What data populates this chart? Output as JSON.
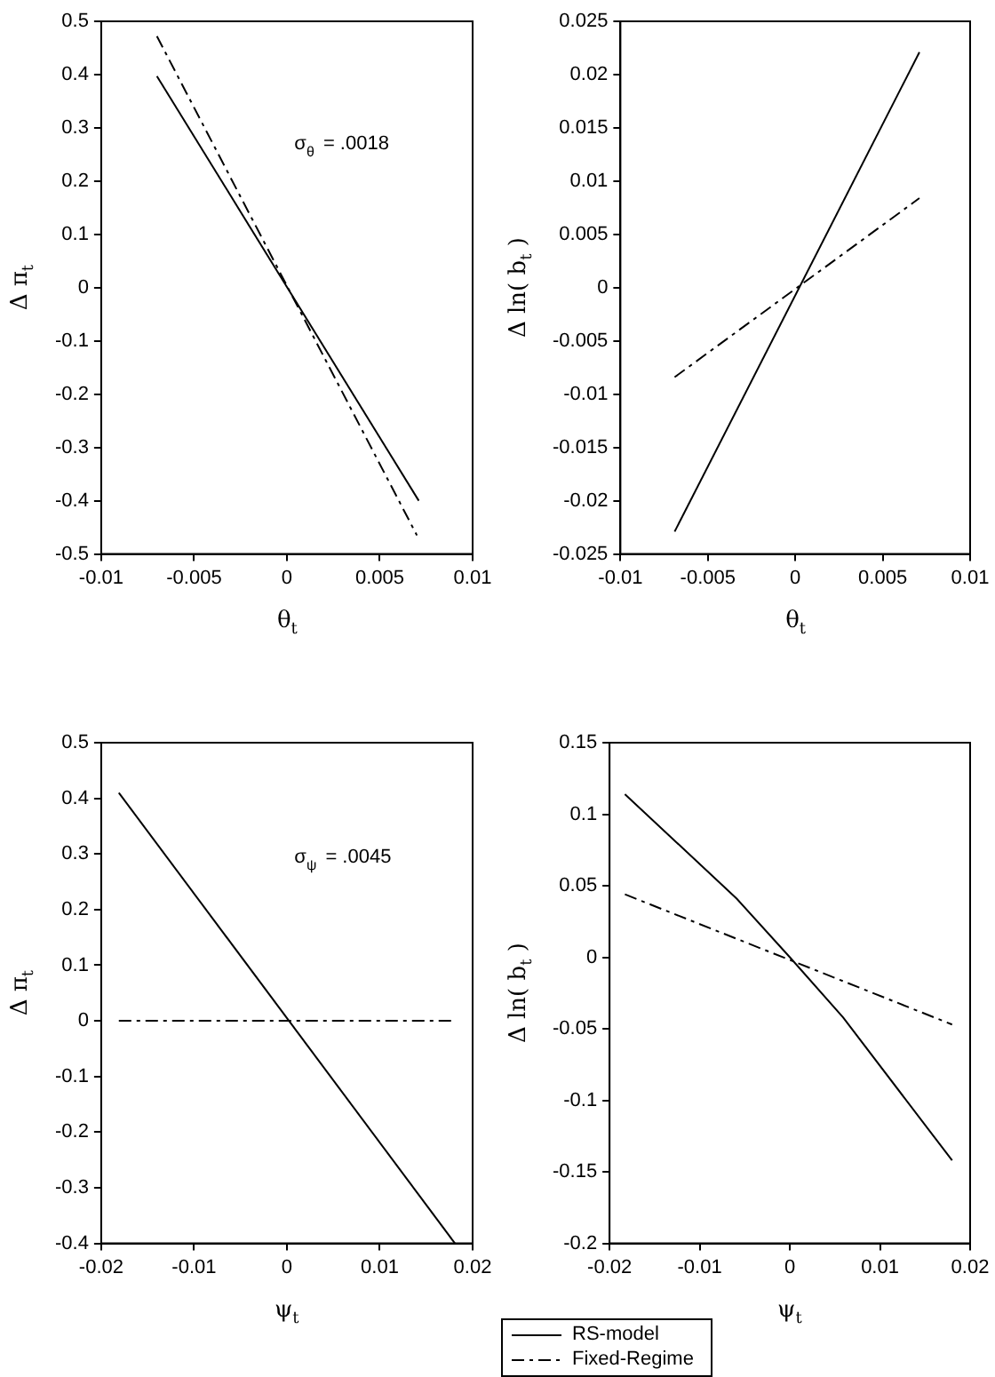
{
  "chart_data": [
    {
      "type": "line",
      "xlabel": "θ$_{t}$",
      "ylabel": "Δ π$_{t}$",
      "xlim": [
        -0.01,
        0.01
      ],
      "xticks": [
        -0.01,
        -0.005,
        0,
        0.005,
        0.01
      ],
      "ylim": [
        -0.5,
        0.5
      ],
      "yticks": [
        -0.5,
        -0.4,
        -0.3,
        -0.2,
        -0.1,
        0,
        0.1,
        0.2,
        0.3,
        0.4,
        0.5
      ],
      "grid": false,
      "legend": false,
      "marker": "none",
      "annotations": [
        "σ$_{θ}$ = .0018"
      ],
      "series": [
        {
          "color": "#000000",
          "line_style": "solid",
          "x": [
            -0.007,
            0.0071
          ],
          "values": [
            0.397,
            -0.4
          ]
        },
        {
          "color": "#000000",
          "line_style": "dashed",
          "x": [
            -0.007,
            0.007
          ],
          "values": [
            0.472,
            -0.465
          ]
        }
      ]
    },
    {
      "type": "line",
      "ylabel": "Δ ln( b$_{t}$ )",
      "xlabel": "θ$_{t}$",
      "xlim": [
        -0.01,
        0.01
      ],
      "xticks": [
        -0.01,
        -0.005,
        0,
        0.005,
        0.01
      ],
      "ylim": [
        -0.025,
        0.025
      ],
      "yticks": [
        -0.025,
        -0.02,
        -0.015,
        -0.01,
        -0.005,
        0,
        0.005,
        0.01,
        0.015,
        0.02,
        0.025
      ],
      "grid": false,
      "legend": false,
      "marker": "none",
      "series": [
        {
          "color": "#000000",
          "line_style": "solid",
          "x": [
            -0.0069,
            0.0071
          ],
          "values": [
            -0.0229,
            0.0221
          ]
        },
        {
          "color": "#000000",
          "line_style": "dashed",
          "x": [
            -0.0069,
            0.0071
          ],
          "values": [
            -0.0084,
            0.0084
          ]
        }
      ]
    },
    {
      "type": "line",
      "xlabel": "ψ$_{t}$",
      "ylabel": "Δ π$_{t}$",
      "xlim": [
        -0.02,
        0.02
      ],
      "xticks": [
        -0.02,
        -0.01,
        0,
        0.01,
        0.02
      ],
      "ylim": [
        -0.4,
        0.5
      ],
      "yticks": [
        -0.4,
        -0.3,
        -0.2,
        -0.1,
        0,
        0.1,
        0.2,
        0.3,
        0.4,
        0.5
      ],
      "grid": false,
      "legend": false,
      "marker": "none",
      "annotations": [
        "σ$_{ψ}$ = .0045"
      ],
      "series": [
        {
          "color": "#000000",
          "line_style": "solid",
          "x": [
            -0.0181,
            0.0181
          ],
          "values": [
            0.41,
            -0.4
          ]
        },
        {
          "color": "#000000",
          "line_style": "dashed",
          "x": [
            -0.0181,
            0.0181
          ],
          "values": [
            0,
            0
          ]
        }
      ]
    },
    {
      "type": "line",
      "xlabel": "ψ$_{t}$",
      "ylabel": "Δ ln( b$_{t}$ )",
      "xlim": [
        -0.02,
        0.02
      ],
      "xticks": [
        -0.02,
        -0.01,
        0,
        0.01,
        0.02
      ],
      "ylim": [
        -0.2,
        0.15
      ],
      "yticks": [
        -0.2,
        -0.15,
        -0.1,
        -0.05,
        0,
        0.05,
        0.1,
        0.15
      ],
      "grid": false,
      "legend": "bottom left",
      "marker": "none",
      "series": [
        {
          "name": "RS-model",
          "color": "#000000",
          "line_style": "solid",
          "x": [
            -0.0183,
            -0.0059,
            0,
            0.0059,
            0.018
          ],
          "values": [
            0.114,
            0.041,
            0,
            -0.042,
            -0.142
          ]
        },
        {
          "name": "Fixed-Regime",
          "color": "#000000",
          "line_style": "dashed",
          "x": [
            -0.0183,
            0.018
          ],
          "values": [
            0.044,
            -0.047
          ]
        }
      ]
    }
  ]
}
